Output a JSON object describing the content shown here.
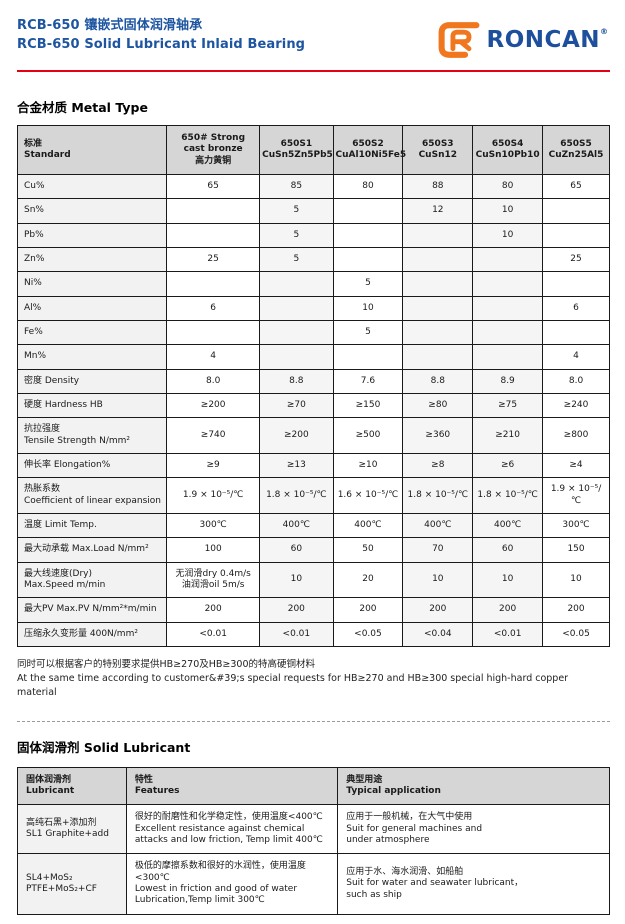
{
  "header": {
    "title_zh": "RCB-650 镶嵌式固体润滑轴承",
    "title_en": "RCB-650 Solid Lubricant Inlaid Bearing",
    "logo_text": "RONCAN",
    "logo_reg": "®",
    "logo_icon": "roncan-r-mark",
    "brand_blue": "#1d4f9c",
    "brand_orange": "#f0771e",
    "rule_red": "#e60014"
  },
  "metal_section": {
    "title": "合金材质 Metal Type",
    "note_zh": "同时可以根据客户的特别要求提供HB≥270及HB≥300的特高硬铜材料",
    "note_en": "At the same time according to customer&#39;s special requests for HB≥270 and HB≥300 special high-hard copper material"
  },
  "metal_table": {
    "columns": [
      [
        "标准",
        "Standard"
      ],
      [
        "650# Strong",
        "cast bronze",
        "高力黄铜"
      ],
      [
        "650S1",
        "CuSn5Zn5Pb5"
      ],
      [
        "650S2",
        "CuAl10Ni5Fe5"
      ],
      [
        "650S3",
        "CuSn12"
      ],
      [
        "650S4",
        "CuSn10Pb10"
      ],
      [
        "650S5",
        "CuZn25Al5"
      ]
    ],
    "shaded_value_columns": [
      1,
      3,
      4
    ],
    "rows": [
      {
        "label": [
          "Cu%"
        ],
        "values": [
          "65",
          "85",
          "80",
          "88",
          "80",
          "65"
        ]
      },
      {
        "label": [
          "Sn%"
        ],
        "values": [
          "",
          "5",
          "",
          "12",
          "10",
          ""
        ]
      },
      {
        "label": [
          "Pb%"
        ],
        "values": [
          "",
          "5",
          "",
          "",
          "10",
          ""
        ]
      },
      {
        "label": [
          "Zn%"
        ],
        "values": [
          "25",
          "5",
          "",
          "",
          "",
          "25"
        ]
      },
      {
        "label": [
          "Ni%"
        ],
        "values": [
          "",
          "",
          "5",
          "",
          "",
          ""
        ]
      },
      {
        "label": [
          "Al%"
        ],
        "values": [
          "6",
          "",
          "10",
          "",
          "",
          "6"
        ]
      },
      {
        "label": [
          "Fe%"
        ],
        "values": [
          "",
          "",
          "5",
          "",
          "",
          ""
        ]
      },
      {
        "label": [
          "Mn%"
        ],
        "values": [
          "4",
          "",
          "",
          "",
          "",
          "4"
        ]
      },
      {
        "label": [
          "密度 Density"
        ],
        "values": [
          "8.0",
          "8.8",
          "7.6",
          "8.8",
          "8.9",
          "8.0"
        ]
      },
      {
        "label": [
          "硬度 Hardness HB"
        ],
        "values": [
          "≥200",
          "≥70",
          "≥150",
          "≥80",
          "≥75",
          "≥240"
        ]
      },
      {
        "label": [
          "抗拉强度",
          "Tensile Strength N/mm²"
        ],
        "values": [
          "≥740",
          "≥200",
          "≥500",
          "≥360",
          "≥210",
          "≥800"
        ]
      },
      {
        "label": [
          "伸长率 Elongation%"
        ],
        "values": [
          "≥9",
          "≥13",
          "≥10",
          "≥8",
          "≥6",
          "≥4"
        ]
      },
      {
        "label": [
          "热胀系数",
          "Coefficient of linear expansion"
        ],
        "values": [
          "1.9 × 10⁻⁵/℃",
          "1.8 × 10⁻⁵/℃",
          "1.6 × 10⁻⁵/℃",
          "1.8 × 10⁻⁵/℃",
          "1.8 × 10⁻⁵/℃",
          "1.9 × 10⁻⁵/℃"
        ]
      },
      {
        "label": [
          "温度 Limit Temp."
        ],
        "values": [
          "300℃",
          "400℃",
          "400℃",
          "400℃",
          "400℃",
          "300℃"
        ]
      },
      {
        "label": [
          "最大动承载 Max.Load N/mm²"
        ],
        "values": [
          "100",
          "60",
          "50",
          "70",
          "60",
          "150"
        ]
      },
      {
        "label": [
          "最大线速度(Dry)",
          "Max.Speed m/min"
        ],
        "values": [
          [
            "无润滑dry 0.4m/s",
            "油润滑oil  5m/s"
          ],
          "10",
          "20",
          "10",
          "10",
          "10"
        ]
      },
      {
        "label": [
          "最大PV Max.PV  N/mm²*m/min"
        ],
        "values": [
          "200",
          "200",
          "200",
          "200",
          "200",
          "200"
        ]
      },
      {
        "label": [
          "压缩永久变形量 400N/mm²"
        ],
        "values": [
          "<0.01",
          "<0.01",
          "<0.05",
          "<0.04",
          "<0.01",
          "<0.05"
        ]
      }
    ]
  },
  "lubricant_section": {
    "title": "固体润滑剂 Solid Lubricant"
  },
  "lubricant_table": {
    "columns": [
      [
        "固体润滑剂",
        "Lubricant"
      ],
      [
        "特性",
        "Features"
      ],
      [
        "典型用途",
        "Typical application"
      ]
    ],
    "rows": [
      {
        "label": [
          "高纯石黑+添加剂",
          "SL1 Graphite+add"
        ],
        "values": [
          [
            "很好的耐磨性和化学稳定性，使用温度<400℃",
            "Excellent resistance against chemical",
            "attacks and low friction, Temp limit 400℃"
          ],
          [
            "应用于一般机械，在大气中使用",
            "Suit for general machines and",
            "under atmosphere"
          ]
        ]
      },
      {
        "label": [
          "SL4+MoS₂",
          "PTFE+MoS₂+CF"
        ],
        "values": [
          [
            "极低的摩擦系数和很好的水润性，使用温度<300℃",
            "Lowest in friction and good of water",
            "Lubrication,Temp limit 300℃"
          ],
          [
            "应用于水、海水润滑、如船舶",
            "Suit for water and seawater lubricant，",
            "such as ship"
          ]
        ]
      }
    ]
  }
}
